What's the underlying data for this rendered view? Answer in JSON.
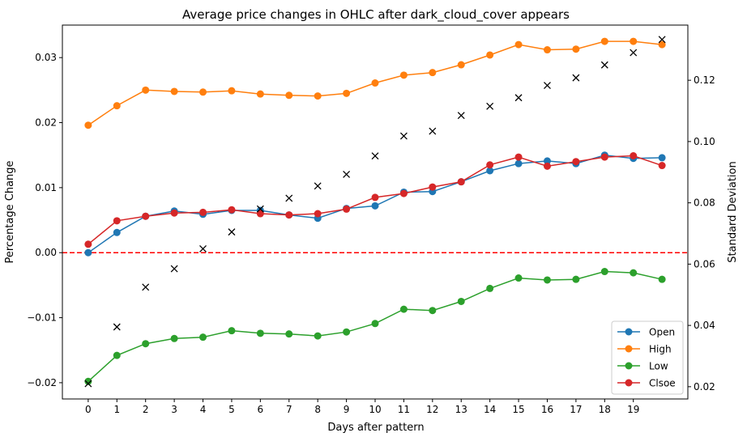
{
  "chart_data": {
    "type": "line",
    "title": "Average price changes in OHLC after dark_cloud_cover appears",
    "xlabel": "Days after pattern",
    "ylabel": "Percentage Change",
    "y2label": "Standard Deviation",
    "x": [
      0,
      1,
      2,
      3,
      4,
      5,
      6,
      7,
      8,
      9,
      10,
      11,
      12,
      13,
      14,
      15,
      16,
      17,
      18,
      19,
      20
    ],
    "xticks": [
      0,
      1,
      2,
      3,
      4,
      5,
      6,
      7,
      8,
      9,
      10,
      11,
      12,
      13,
      14,
      15,
      16,
      17,
      18,
      19
    ],
    "xlim": [
      -0.9,
      20.9
    ],
    "ylim": [
      -0.0225,
      0.035
    ],
    "yticks": [
      -0.02,
      -0.01,
      0.0,
      0.01,
      0.02,
      0.03
    ],
    "ytick_labels": [
      "−0.02",
      "−0.01",
      "0.00",
      "0.01",
      "0.02",
      "0.03"
    ],
    "y2lim": [
      0.016,
      0.138
    ],
    "y2ticks": [
      0.02,
      0.04,
      0.06,
      0.08,
      0.1,
      0.12
    ],
    "y2tick_labels": [
      "0.02",
      "0.04",
      "0.06",
      "0.08",
      "0.10",
      "0.12"
    ],
    "series": [
      {
        "name": "Open",
        "color": "#1f77b4",
        "values": [
          0.0,
          0.0031,
          0.0056,
          0.0064,
          0.0059,
          0.0065,
          0.0065,
          0.0058,
          0.0053,
          0.0068,
          0.0072,
          0.0093,
          0.0094,
          0.0109,
          0.0126,
          0.0137,
          0.0141,
          0.0137,
          0.015,
          0.0145,
          0.0146
        ]
      },
      {
        "name": "High",
        "color": "#ff7f0e",
        "values": [
          0.0196,
          0.0226,
          0.025,
          0.0248,
          0.0247,
          0.0249,
          0.0244,
          0.0242,
          0.0241,
          0.0245,
          0.0261,
          0.0273,
          0.0277,
          0.0289,
          0.0304,
          0.032,
          0.0312,
          0.0313,
          0.0325,
          0.0325,
          0.032
        ]
      },
      {
        "name": "Low",
        "color": "#2ca02c",
        "values": [
          -0.0198,
          -0.0158,
          -0.014,
          -0.0132,
          -0.013,
          -0.012,
          -0.0124,
          -0.0125,
          -0.0128,
          -0.0122,
          -0.0109,
          -0.0087,
          -0.0089,
          -0.0075,
          -0.0055,
          -0.0039,
          -0.0042,
          -0.0041,
          -0.0029,
          -0.0031,
          -0.0041
        ]
      },
      {
        "name": "Clsoe",
        "color": "#d62728",
        "values": [
          0.0013,
          0.0049,
          0.0056,
          0.0061,
          0.0062,
          0.0066,
          0.006,
          0.0058,
          0.006,
          0.0067,
          0.0085,
          0.0091,
          0.0101,
          0.0109,
          0.0135,
          0.0147,
          0.0133,
          0.014,
          0.0147,
          0.0149,
          0.0134
        ]
      }
    ],
    "std_dev": {
      "marker": "x",
      "color": "#000000",
      "values": [
        0.021,
        0.0395,
        0.0525,
        0.0585,
        0.065,
        0.0705,
        0.078,
        0.0815,
        0.0855,
        0.0893,
        0.0953,
        0.1018,
        0.1034,
        0.1085,
        0.1115,
        0.1143,
        0.1183,
        0.1208,
        0.125,
        0.129,
        0.1333
      ]
    },
    "reference_line": {
      "y": 0.0,
      "color": "#ff0000",
      "style": "dashed"
    },
    "legend_position": "lower-right",
    "grid": false
  }
}
